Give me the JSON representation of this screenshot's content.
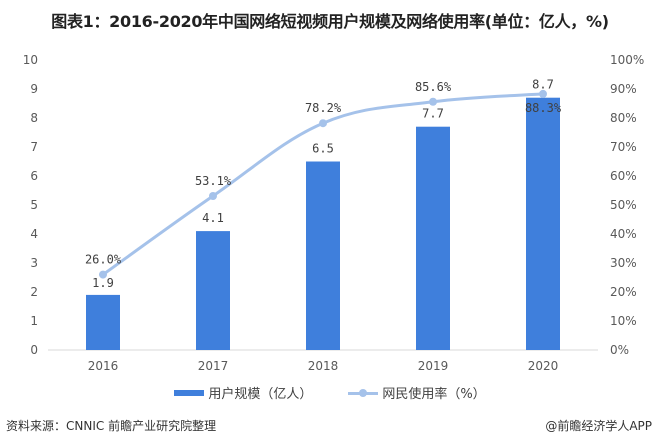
{
  "title": "图表1：2016-2020年中国网络短视频用户规模及网络使用率(单位：亿人，%)",
  "chart_data": {
    "type": "bar",
    "title": "图表1：2016-2020年中国网络短视频用户规模及网络使用率(单位：亿人，%)",
    "categories": [
      "2016",
      "2017",
      "2018",
      "2019",
      "2020"
    ],
    "series": [
      {
        "name": "用户规模（亿人）",
        "type": "bar",
        "axis": "left",
        "values": [
          1.9,
          4.1,
          6.5,
          7.7,
          8.7
        ],
        "labels": [
          "1.9",
          "4.1",
          "6.5",
          "7.7",
          "8.7"
        ],
        "color": "#3f7fdc"
      },
      {
        "name": "网民使用率（%）",
        "type": "line",
        "axis": "right",
        "smooth": true,
        "values": [
          26.0,
          53.1,
          78.2,
          85.6,
          88.3
        ],
        "labels": [
          "26.0%",
          "53.1%",
          "78.2%",
          "85.6%",
          "88.3%"
        ],
        "color": "#a5c2ea"
      }
    ],
    "yleft": {
      "ylim": [
        0,
        10
      ],
      "ticks": [
        "0",
        "1",
        "2",
        "3",
        "4",
        "5",
        "6",
        "7",
        "8",
        "9",
        "10"
      ]
    },
    "yright": {
      "ylim": [
        0,
        100
      ],
      "ticks": [
        "0%",
        "10%",
        "20%",
        "30%",
        "40%",
        "50%",
        "60%",
        "70%",
        "80%",
        "90%",
        "100%"
      ]
    },
    "grid": false,
    "legend_position": "bottom"
  },
  "legend": {
    "bar_label": "用户规模（亿人）",
    "line_label": "网民使用率（%）"
  },
  "footer": {
    "source": "资料来源：CNNIC 前瞻产业研究院整理",
    "credit": "@前瞻经济学人APP"
  }
}
